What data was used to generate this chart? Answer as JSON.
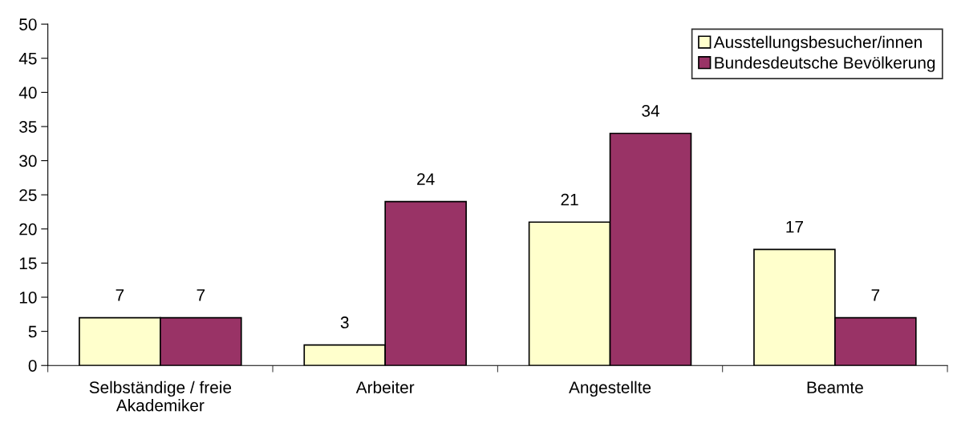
{
  "chart_data": {
    "type": "bar",
    "categories": [
      "Selbständige / freie\nAkademiker",
      "Arbeiter",
      "Angestellte",
      "Beamte"
    ],
    "series": [
      {
        "name": "Ausstellungsbesucher/innen",
        "color": "#ffffcc",
        "values": [
          7,
          3,
          21,
          17
        ]
      },
      {
        "name": "Bundesdeutsche Bevölkerung",
        "color": "#993366",
        "values": [
          7,
          24,
          34,
          7
        ]
      }
    ],
    "ylim": [
      0,
      50
    ],
    "yticks": [
      0,
      5,
      10,
      15,
      20,
      25,
      30,
      35,
      40,
      45,
      50
    ],
    "data_labels": true,
    "grid": false,
    "legend": "top right"
  }
}
